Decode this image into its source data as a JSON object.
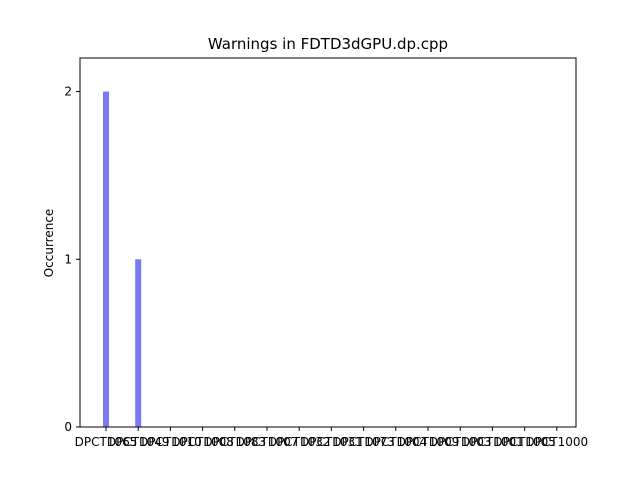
{
  "chart_data": {
    "type": "bar",
    "title": "Warnings in FDTD3dGPU.dp.cpp",
    "xlabel": "",
    "ylabel": "Occurrence",
    "categories": [
      "DPCT1065",
      "DPCT1049",
      "DPCT1010",
      "DPCT1008",
      "DPCT1083",
      "DPCT1007",
      "DPCT1032",
      "DPCT1031",
      "DPCT1073",
      "DPCT1004",
      "DPCT1009",
      "DPCT1003",
      "DPCT1001",
      "DPCT1005",
      "DPCT1000"
    ],
    "values": [
      2,
      1,
      0,
      0,
      0,
      0,
      0,
      0,
      0,
      0,
      0,
      0,
      0,
      0,
      0
    ],
    "ylim": [
      0,
      2.2
    ],
    "yticks": [
      0,
      1,
      2
    ],
    "grid": false,
    "legend": "none",
    "bar_color": "#7b7bf0"
  }
}
